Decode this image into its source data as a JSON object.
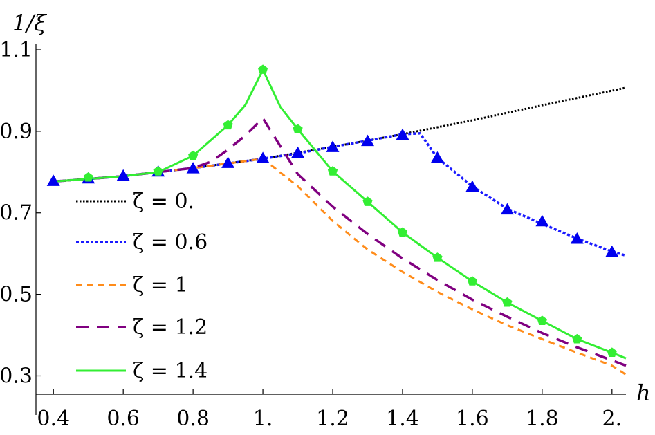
{
  "chart_data": {
    "type": "line",
    "title": "",
    "xlabel": "h",
    "ylabel": "1/ξ",
    "xlim": [
      0.35,
      2.04
    ],
    "ylim": [
      0.255,
      1.1
    ],
    "x_ticks": [
      0.4,
      0.6,
      0.8,
      1.0,
      1.2,
      1.4,
      1.6,
      1.8,
      2.0
    ],
    "x_tick_labels": [
      "0.4",
      "0.6",
      "0.8",
      "1.",
      "1.2",
      "1.4",
      "1.6",
      "1.8",
      "2."
    ],
    "y_ticks": [
      0.3,
      0.5,
      0.7,
      0.9,
      1.1
    ],
    "y_tick_labels": [
      "0.3",
      "0.5",
      "0.7",
      "0.9",
      "1.1"
    ],
    "legend_placement": "lower-left",
    "grid": false,
    "series": [
      {
        "name": "ζ = 0.",
        "legend_label": "ζ = 0.",
        "color": "#000000",
        "dash": "dotted",
        "x": [
          0.4,
          0.6,
          0.8,
          1.0,
          1.2,
          1.4,
          1.6,
          1.8,
          2.04
        ],
        "y": [
          0.777,
          0.79,
          0.81,
          0.833,
          0.862,
          0.893,
          0.927,
          0.964,
          1.007
        ]
      },
      {
        "name": "ζ = 0.6",
        "legend_label": "ζ = 0.6",
        "color": "#1a1aff",
        "dash": "dotted-dense",
        "x": [
          0.4,
          0.5,
          0.6,
          0.7,
          0.8,
          0.9,
          1.0,
          1.1,
          1.2,
          1.3,
          1.4,
          1.45,
          1.5,
          1.6,
          1.7,
          1.8,
          1.9,
          2.0,
          2.04
        ],
        "y": [
          0.777,
          0.783,
          0.79,
          0.8,
          0.81,
          0.821,
          0.833,
          0.846,
          0.862,
          0.877,
          0.893,
          0.895,
          0.835,
          0.765,
          0.71,
          0.673,
          0.637,
          0.605,
          0.595
        ]
      },
      {
        "name": "ζ = 1",
        "legend_label": "ζ = 1",
        "color": "#ff8c1a",
        "dash": "short-dash",
        "x": [
          0.4,
          0.5,
          0.6,
          0.7,
          0.8,
          0.9,
          1.0,
          1.1,
          1.2,
          1.3,
          1.4,
          1.5,
          1.6,
          1.7,
          1.8,
          1.9,
          2.0,
          2.04
        ],
        "y": [
          0.777,
          0.783,
          0.79,
          0.8,
          0.81,
          0.821,
          0.833,
          0.765,
          0.68,
          0.61,
          0.555,
          0.506,
          0.463,
          0.424,
          0.39,
          0.357,
          0.325,
          0.303
        ]
      },
      {
        "name": "ζ = 1.2",
        "legend_label": "ζ = 1.2",
        "color": "#800080",
        "dash": "long-dash",
        "x": [
          0.4,
          0.5,
          0.6,
          0.7,
          0.8,
          0.85,
          0.9,
          0.95,
          1.0,
          1.1,
          1.2,
          1.3,
          1.4,
          1.5,
          1.6,
          1.7,
          1.8,
          1.9,
          2.0,
          2.04
        ],
        "y": [
          0.777,
          0.783,
          0.79,
          0.8,
          0.81,
          0.825,
          0.855,
          0.89,
          0.932,
          0.795,
          0.715,
          0.648,
          0.588,
          0.535,
          0.487,
          0.445,
          0.405,
          0.37,
          0.338,
          0.325
        ]
      },
      {
        "name": "ζ = 1.4",
        "legend_label": "ζ = 1.4",
        "color": "#33ee33",
        "dash": "solid",
        "x": [
          0.4,
          0.5,
          0.6,
          0.7,
          0.8,
          0.9,
          0.95,
          1.0,
          1.05,
          1.1,
          1.2,
          1.3,
          1.4,
          1.5,
          1.6,
          1.7,
          1.8,
          1.9,
          2.0,
          2.04
        ],
        "y": [
          0.777,
          0.783,
          0.79,
          0.8,
          0.84,
          0.915,
          0.965,
          1.051,
          0.96,
          0.905,
          0.802,
          0.727,
          0.652,
          0.59,
          0.532,
          0.48,
          0.435,
          0.39,
          0.357,
          0.343
        ]
      }
    ],
    "markers": [
      {
        "series": "ζ = 0.6",
        "shape": "triangle",
        "color": "#0000ee",
        "x": [
          0.4,
          0.5,
          0.6,
          0.7,
          0.8,
          0.9,
          1.0,
          1.1,
          1.2,
          1.3,
          1.4,
          1.5,
          1.6,
          1.7,
          1.8,
          1.9,
          2.0
        ],
        "y": [
          0.777,
          0.783,
          0.79,
          0.8,
          0.808,
          0.821,
          0.833,
          0.846,
          0.86,
          0.875,
          0.89,
          0.834,
          0.763,
          0.707,
          0.678,
          0.635,
          0.603
        ]
      },
      {
        "series": "ζ = 1.4",
        "shape": "pentagon",
        "color": "#33ee33",
        "x": [
          0.5,
          0.7,
          0.8,
          0.9,
          1.0,
          1.1,
          1.2,
          1.3,
          1.4,
          1.5,
          1.6,
          1.7,
          1.8,
          1.9,
          2.0
        ],
        "y": [
          0.787,
          0.802,
          0.84,
          0.915,
          1.051,
          0.905,
          0.802,
          0.727,
          0.652,
          0.59,
          0.532,
          0.48,
          0.435,
          0.39,
          0.357
        ]
      }
    ]
  }
}
